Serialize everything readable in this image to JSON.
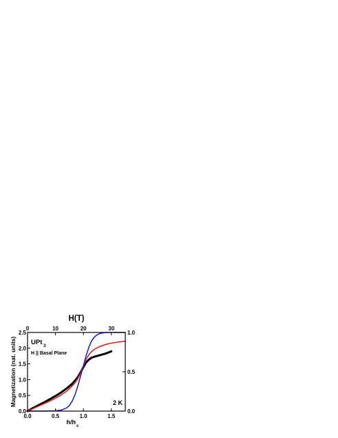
{
  "chart_data": {
    "type": "line",
    "title": "",
    "xlabel_bottom_main": "h/h",
    "xlabel_bottom_sub": "c",
    "xlabel_top": "H(T)",
    "ylabel_left": "Magnetization (nat. units)",
    "xlim": [
      0,
      1.75
    ],
    "ylim_left": [
      0,
      2.5
    ],
    "xlim_top": [
      0,
      35
    ],
    "ylim_right": [
      0,
      1.0
    ],
    "x_ticks_bottom": [
      "0.0",
      "0.5",
      "1.0",
      "1.5"
    ],
    "x_ticks_top": [
      "0",
      "10",
      "20",
      "30"
    ],
    "y_ticks_left": [
      "0.0",
      "0.5",
      "1.0",
      "1.5",
      "2.0",
      "2.5"
    ],
    "y_ticks_right": [
      "0.0",
      "0.5",
      "1.0"
    ],
    "annotations": {
      "material_main": "UPt",
      "material_sub": "3",
      "field_orientation": "H || Basal Plane",
      "temperature": "2 K"
    },
    "series": [
      {
        "color": "#000000",
        "x": [
          0.0,
          0.1,
          0.2,
          0.3,
          0.4,
          0.5,
          0.6,
          0.7,
          0.8,
          0.85,
          0.9,
          0.95,
          1.0,
          1.05,
          1.1,
          1.15,
          1.2,
          1.3,
          1.4,
          1.5
        ],
        "y": [
          0.0,
          0.1,
          0.19,
          0.28,
          0.38,
          0.48,
          0.59,
          0.72,
          0.87,
          0.97,
          1.08,
          1.23,
          1.4,
          1.55,
          1.64,
          1.7,
          1.73,
          1.78,
          1.83,
          1.9
        ]
      },
      {
        "color": "#e02020",
        "x": [
          0.0,
          0.1,
          0.2,
          0.3,
          0.4,
          0.5,
          0.6,
          0.7,
          0.8,
          0.85,
          0.9,
          0.95,
          1.0,
          1.05,
          1.1,
          1.15,
          1.2,
          1.3,
          1.4,
          1.5,
          1.6,
          1.75
        ],
        "y": [
          0.0,
          0.08,
          0.16,
          0.24,
          0.32,
          0.41,
          0.51,
          0.63,
          0.8,
          0.9,
          1.03,
          1.2,
          1.44,
          1.65,
          1.8,
          1.9,
          1.97,
          2.06,
          2.12,
          2.16,
          2.19,
          2.22
        ]
      },
      {
        "color": "#2020e0",
        "x": [
          0.0,
          0.3,
          0.5,
          0.6,
          0.7,
          0.75,
          0.8,
          0.85,
          0.9,
          0.95,
          1.0,
          1.05,
          1.1,
          1.15,
          1.2,
          1.25,
          1.3,
          1.4,
          1.5,
          1.6,
          1.75
        ],
        "y": [
          0.0,
          0.0,
          0.01,
          0.03,
          0.1,
          0.18,
          0.32,
          0.52,
          0.8,
          1.12,
          1.44,
          1.77,
          2.04,
          2.24,
          2.36,
          2.43,
          2.47,
          2.5,
          2.5,
          2.5,
          2.5
        ]
      }
    ]
  }
}
